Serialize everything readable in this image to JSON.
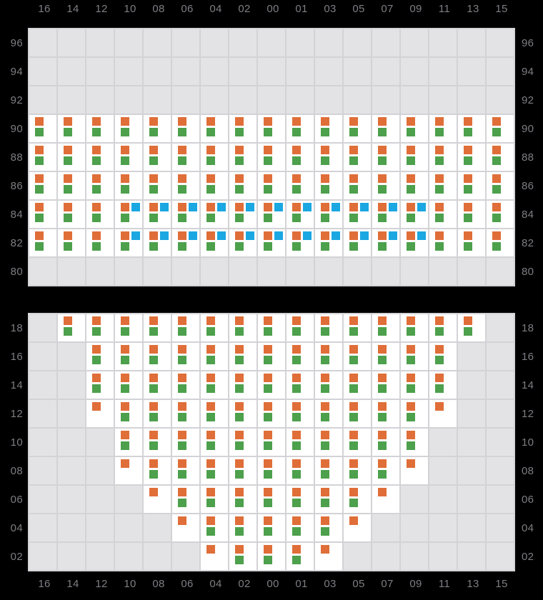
{
  "colors": {
    "background": "#000000",
    "orange": "#e06e38",
    "green": "#4da04c",
    "blue": "#1aa7e2",
    "empty_cell": "#e3e3e5",
    "occupied_cell": "#ffffff",
    "grid_line": "#d3d3d7",
    "label_text": "#7e7e84"
  },
  "chart_data": [
    {
      "type": "heatmap",
      "title": "",
      "panel": "upper-deck-tiers",
      "x_labels": [
        "16",
        "14",
        "12",
        "10",
        "08",
        "06",
        "04",
        "02",
        "00",
        "01",
        "03",
        "05",
        "07",
        "09",
        "11",
        "13",
        "15"
      ],
      "y_labels": [
        "96",
        "94",
        "92",
        "90",
        "88",
        "86",
        "84",
        "82",
        "80"
      ],
      "cell_codes": {
        "": "empty slot (gray)",
        "o": "orange square only",
        "og": "orange + green squares",
        "ogb": "orange + green + blue squares"
      },
      "grid": true,
      "legend_position": "none",
      "cells": [
        [
          "",
          "",
          "",
          "",
          "",
          "",
          "",
          "",
          "",
          "",
          "",
          "",
          "",
          "",
          "",
          "",
          ""
        ],
        [
          "",
          "",
          "",
          "",
          "",
          "",
          "",
          "",
          "",
          "",
          "",
          "",
          "",
          "",
          "",
          "",
          ""
        ],
        [
          "",
          "",
          "",
          "",
          "",
          "",
          "",
          "",
          "",
          "",
          "",
          "",
          "",
          "",
          "",
          "",
          ""
        ],
        [
          "og",
          "og",
          "og",
          "og",
          "og",
          "og",
          "og",
          "og",
          "og",
          "og",
          "og",
          "og",
          "og",
          "og",
          "og",
          "og",
          "og"
        ],
        [
          "og",
          "og",
          "og",
          "og",
          "og",
          "og",
          "og",
          "og",
          "og",
          "og",
          "og",
          "og",
          "og",
          "og",
          "og",
          "og",
          "og"
        ],
        [
          "og",
          "og",
          "og",
          "og",
          "og",
          "og",
          "og",
          "og",
          "og",
          "og",
          "og",
          "og",
          "og",
          "og",
          "og",
          "og",
          "og"
        ],
        [
          "og",
          "og",
          "og",
          "ogb",
          "ogb",
          "ogb",
          "ogb",
          "ogb",
          "ogb",
          "ogb",
          "ogb",
          "ogb",
          "ogb",
          "ogb",
          "og",
          "og",
          "og"
        ],
        [
          "og",
          "og",
          "og",
          "ogb",
          "ogb",
          "ogb",
          "ogb",
          "ogb",
          "ogb",
          "ogb",
          "ogb",
          "ogb",
          "ogb",
          "ogb",
          "og",
          "og",
          "og"
        ],
        [
          "",
          "",
          "",
          "",
          "",
          "",
          "",
          "",
          "",
          "",
          "",
          "",
          "",
          "",
          "",
          "",
          ""
        ]
      ]
    },
    {
      "type": "heatmap",
      "title": "",
      "panel": "lower-hold-tiers",
      "x_labels": [
        "16",
        "14",
        "12",
        "10",
        "08",
        "06",
        "04",
        "02",
        "00",
        "01",
        "03",
        "05",
        "07",
        "09",
        "11",
        "13",
        "15"
      ],
      "y_labels": [
        "18",
        "16",
        "14",
        "12",
        "10",
        "08",
        "06",
        "04",
        "02"
      ],
      "cell_codes": {
        "": "empty slot (gray)",
        "o": "orange square only",
        "og": "orange + green squares",
        "ogb": "orange + green + blue squares"
      },
      "grid": true,
      "legend_position": "none",
      "cells": [
        [
          "",
          "og",
          "og",
          "og",
          "og",
          "og",
          "og",
          "og",
          "og",
          "og",
          "og",
          "og",
          "og",
          "og",
          "og",
          "og",
          ""
        ],
        [
          "",
          "",
          "og",
          "og",
          "og",
          "og",
          "og",
          "og",
          "og",
          "og",
          "og",
          "og",
          "og",
          "og",
          "og",
          "",
          ""
        ],
        [
          "",
          "",
          "og",
          "og",
          "og",
          "og",
          "og",
          "og",
          "og",
          "og",
          "og",
          "og",
          "og",
          "og",
          "og",
          "",
          ""
        ],
        [
          "",
          "",
          "o",
          "og",
          "og",
          "og",
          "og",
          "og",
          "og",
          "og",
          "og",
          "og",
          "og",
          "og",
          "o",
          "",
          ""
        ],
        [
          "",
          "",
          "",
          "og",
          "og",
          "og",
          "og",
          "og",
          "og",
          "og",
          "og",
          "og",
          "og",
          "og",
          "",
          "",
          ""
        ],
        [
          "",
          "",
          "",
          "o",
          "og",
          "og",
          "og",
          "og",
          "og",
          "og",
          "og",
          "og",
          "og",
          "o",
          "",
          "",
          ""
        ],
        [
          "",
          "",
          "",
          "",
          "o",
          "og",
          "og",
          "og",
          "og",
          "og",
          "og",
          "og",
          "o",
          "",
          "",
          "",
          ""
        ],
        [
          "",
          "",
          "",
          "",
          "",
          "o",
          "og",
          "og",
          "og",
          "og",
          "og",
          "o",
          "",
          "",
          "",
          "",
          ""
        ],
        [
          "",
          "",
          "",
          "",
          "",
          "",
          "o",
          "og",
          "og",
          "og",
          "o",
          "",
          "",
          "",
          "",
          "",
          ""
        ]
      ]
    }
  ]
}
